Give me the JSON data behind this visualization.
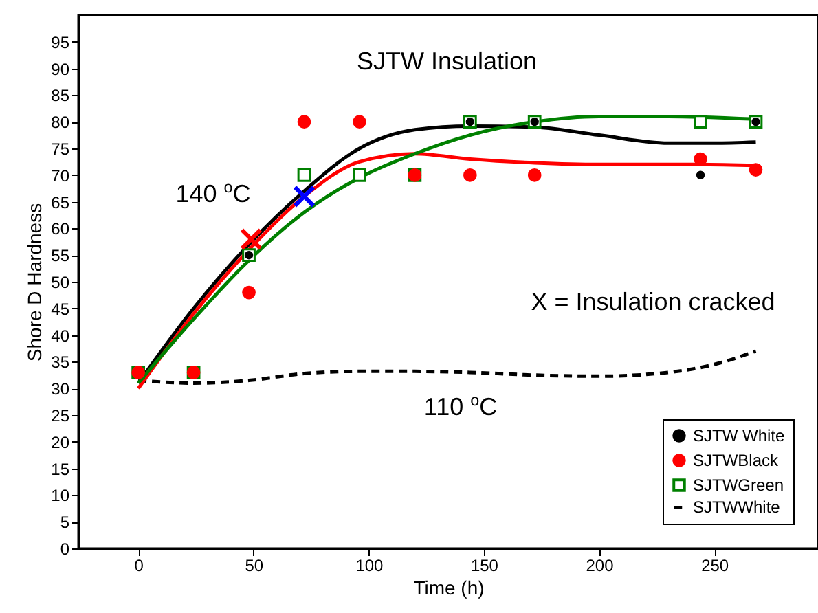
{
  "chart_data": {
    "type": "scatter",
    "xlabel": "Time (h)",
    "ylabel": "Shore D Hardness",
    "annotations": [
      "SJTW Insulation",
      "140 $^{o}$C",
      "X = Insulation cracked",
      "110 $^{o}$C"
    ],
    "xlim": [
      -26,
      295
    ],
    "xticks": [
      0,
      50,
      100,
      150,
      200,
      250
    ],
    "ylim": [
      0,
      100
    ],
    "yticks": [
      0,
      5,
      10,
      15,
      20,
      25,
      30,
      35,
      40,
      45,
      50,
      55,
      60,
      65,
      70,
      75,
      80,
      85,
      90,
      95
    ],
    "grid": false,
    "legend": "bottom right",
    "series": [
      {
        "name": "SJTW White",
        "marker": "circle",
        "color": "#000000",
        "x": [
          48,
          144,
          172,
          244,
          268
        ],
        "values": [
          55,
          80,
          80,
          70,
          80
        ]
      },
      {
        "name": "SJTWBlack",
        "marker": "circle",
        "color": "#ff0000",
        "x": [
          0,
          24,
          48,
          72,
          96,
          120,
          144,
          172,
          244,
          268
        ],
        "values": [
          33,
          33,
          48,
          80,
          80,
          70,
          70,
          70,
          73,
          71
        ]
      },
      {
        "name": "SJTWGreen",
        "marker": "square",
        "color": "#008000",
        "x": [
          0,
          24,
          48,
          72,
          96,
          120,
          144,
          172,
          244,
          268
        ],
        "values": [
          33,
          33,
          55,
          70,
          70,
          70,
          80,
          80,
          80,
          80
        ]
      },
      {
        "name": "SJTWWhite",
        "type": "line",
        "line_style": "dashed",
        "color": "#000000",
        "x": [
          0,
          24,
          48,
          72,
          96,
          120,
          144,
          172,
          200,
          230,
          250,
          268
        ],
        "values": [
          31.5,
          31,
          31.5,
          32.8,
          33.2,
          33.2,
          33,
          32.5,
          32.3,
          33,
          34.5,
          37
        ]
      },
      {
        "type": "line",
        "line_style": "solid",
        "color": "#000000",
        "x": [
          0,
          24,
          48,
          72,
          96,
          120,
          144,
          172,
          200,
          230,
          250,
          268
        ],
        "values": [
          31,
          45,
          57,
          67,
          75,
          78.5,
          79.2,
          79,
          77.5,
          76,
          76,
          76.2
        ]
      },
      {
        "type": "line",
        "line_style": "solid",
        "color": "#ff0000",
        "x": [
          0,
          24,
          48,
          72,
          96,
          120,
          144,
          172,
          200,
          240,
          268
        ],
        "values": [
          30,
          44,
          56,
          66,
          72.5,
          74,
          73,
          72.3,
          72,
          72,
          71.8
        ]
      },
      {
        "type": "line",
        "line_style": "solid",
        "color": "#008000",
        "x": [
          0,
          24,
          48,
          72,
          96,
          120,
          144,
          172,
          200,
          230,
          268
        ],
        "values": [
          31,
          43,
          54,
          63,
          69.5,
          74,
          77.5,
          80,
          81,
          81,
          80.5
        ]
      },
      {
        "marker": "cross",
        "color": "#ff0000",
        "x": [
          49
        ],
        "values": [
          58
        ]
      },
      {
        "marker": "cross",
        "color": "#0000ff",
        "x": [
          72
        ],
        "values": [
          66
        ]
      }
    ]
  }
}
